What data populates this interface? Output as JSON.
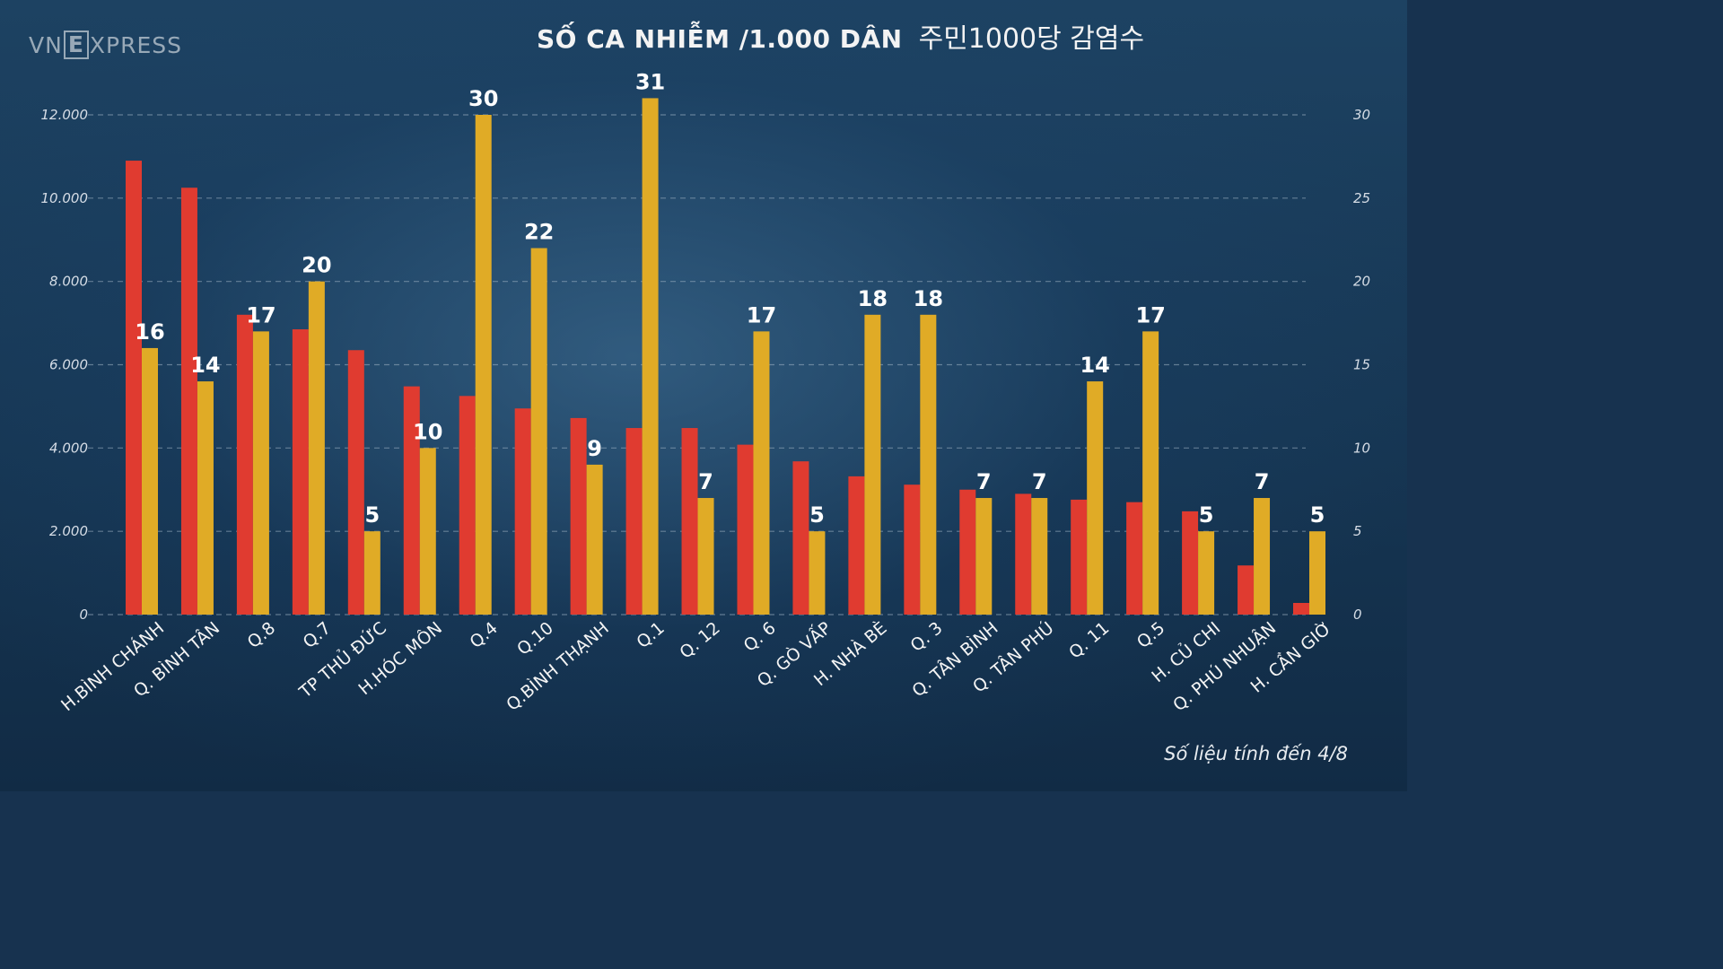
{
  "brand": {
    "pre": "VN",
    "box": "E",
    "post": "XPRESS"
  },
  "title_vi": "SỐ CA NHIỄM /1.000 DÂN",
  "title_ko": "주민1000당 감염수",
  "note": "Số liệu tính đến 4/8",
  "colors": {
    "cases": "#e03b30",
    "per1000": "#e0ab26",
    "grid": "#9fb3c4"
  },
  "chart_data": {
    "type": "bar",
    "title": "SỐ CA NHIỄM /1.000 DÂN",
    "categories": [
      "H.BÌNH CHÁNH",
      "Q. BÌNH TÂN",
      "Q.8",
      "Q.7",
      "TP THỦ ĐỨC",
      "H.HÓC MÔN",
      "Q.4",
      "Q.10",
      "Q.BÌNH THẠNH",
      "Q.1",
      "Q. 12",
      "Q. 6",
      "Q. GÒ VẤP",
      "H. NHÀ BÈ",
      "Q. 3",
      "Q. TÂN BÌNH",
      "Q. TÂN PHÚ",
      "Q. 11",
      "Q.5",
      "H. CỦ CHI",
      "Q. PHÚ NHUẬN",
      "H. CẦN GIỜ"
    ],
    "series": [
      {
        "name": "Số ca nhiễm",
        "axis": "left",
        "values": [
          10900,
          10250,
          7200,
          6850,
          6350,
          5480,
          5250,
          4950,
          4720,
          4480,
          4480,
          4080,
          3680,
          3320,
          3120,
          3000,
          2900,
          2760,
          2700,
          2480,
          1180,
          280
        ]
      },
      {
        "name": "Số ca nhiễm /1.000 dân",
        "axis": "right",
        "values": [
          16,
          14,
          17,
          20,
          5,
          10,
          30,
          22,
          9,
          31,
          7,
          17,
          5,
          18,
          18,
          7,
          7,
          14,
          17,
          5,
          7,
          5
        ]
      }
    ],
    "y_left": {
      "min": 0,
      "max": 12000,
      "ticks": [
        "0",
        "2.000",
        "4.000",
        "6.000",
        "8.000",
        "10.000",
        "12.000"
      ]
    },
    "y_right": {
      "min": 0,
      "max": 30,
      "ticks": [
        "0",
        "5",
        "10",
        "15",
        "20",
        "25",
        "30"
      ]
    },
    "grid": true
  }
}
